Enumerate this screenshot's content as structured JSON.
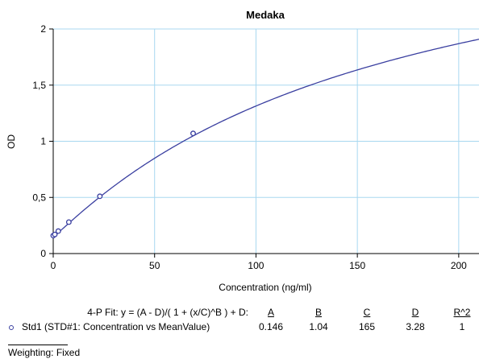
{
  "chart_data": {
    "type": "scatter",
    "title": "Medaka",
    "xlabel": "Concentration (ng/ml)",
    "ylabel": "OD",
    "xlim": [
      0,
      210
    ],
    "ylim": [
      0,
      2
    ],
    "x_ticks": [
      "0",
      "50",
      "100",
      "150",
      "200"
    ],
    "y_ticks": [
      "0",
      "0,5",
      "1",
      "1,5",
      "2"
    ],
    "grid": true,
    "series": [
      {
        "name": "Std1 (STD#1: Concentration vs MeanValue)",
        "x": [
          0,
          0.8,
          2.5,
          7.7,
          23,
          69
        ],
        "y": [
          0.16,
          0.17,
          0.2,
          0.28,
          0.51,
          1.07
        ],
        "color": "#3a3fa0"
      }
    ],
    "fit": {
      "model": "4-PL",
      "A": 0.146,
      "B": 1.04,
      "C": 165,
      "D": 3.28,
      "color": "#3a3fa0"
    }
  },
  "fit_table": {
    "formula": "4-P Fit: y = (A - D)/( 1 + (x/C)^B ) + D:",
    "headers": [
      "A",
      "B",
      "C",
      "D",
      "R^2"
    ],
    "row_label": "Std1 (STD#1: Concentration vs MeanValue)",
    "values": [
      "0.146",
      "1.04",
      "165",
      "3.28",
      "1"
    ]
  },
  "weighting": "Weighting: Fixed"
}
